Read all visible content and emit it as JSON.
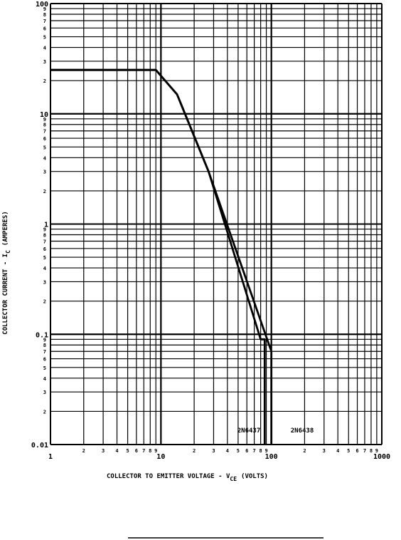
{
  "chart_data": {
    "type": "line",
    "xscale": "log",
    "yscale": "log",
    "xlim": [
      1,
      1000
    ],
    "ylim": [
      0.01,
      100
    ],
    "grid": true,
    "xlabel_main": "COLLECTOR TO EMITTER VOLTAGE - V",
    "xlabel_sub": "CE",
    "xlabel_unit": "(VOLTS)",
    "ylabel_main": "COLLECTOR CURRENT - I",
    "ylabel_sub": "C",
    "ylabel_unit": "(AMPERES)",
    "x_major_labels": [
      {
        "value": 1,
        "label": "1"
      },
      {
        "value": 10,
        "label": "10"
      },
      {
        "value": 100,
        "label": "100"
      },
      {
        "value": 1000,
        "label": "1000"
      }
    ],
    "y_major_labels": [
      {
        "value": 0.01,
        "label": "0.01"
      },
      {
        "value": 0.1,
        "label": "0.1"
      },
      {
        "value": 1,
        "label": "1"
      },
      {
        "value": 10,
        "label": "10"
      },
      {
        "value": 100,
        "label": "100"
      }
    ],
    "minor_labels": [
      "2",
      "3",
      "4",
      "5",
      "6",
      "7",
      "8",
      "9"
    ],
    "series": [
      {
        "name": "2N6437",
        "x": [
          1,
          9,
          14,
          27,
          80,
          87,
          87
        ],
        "y": [
          25,
          25,
          15,
          3,
          0.09,
          0.09,
          0.01
        ]
      },
      {
        "name": "2N6438",
        "x": [
          1,
          9,
          14,
          27,
          100,
          100
        ],
        "y": [
          25,
          25,
          15,
          3,
          0.07,
          0.01
        ]
      }
    ]
  }
}
